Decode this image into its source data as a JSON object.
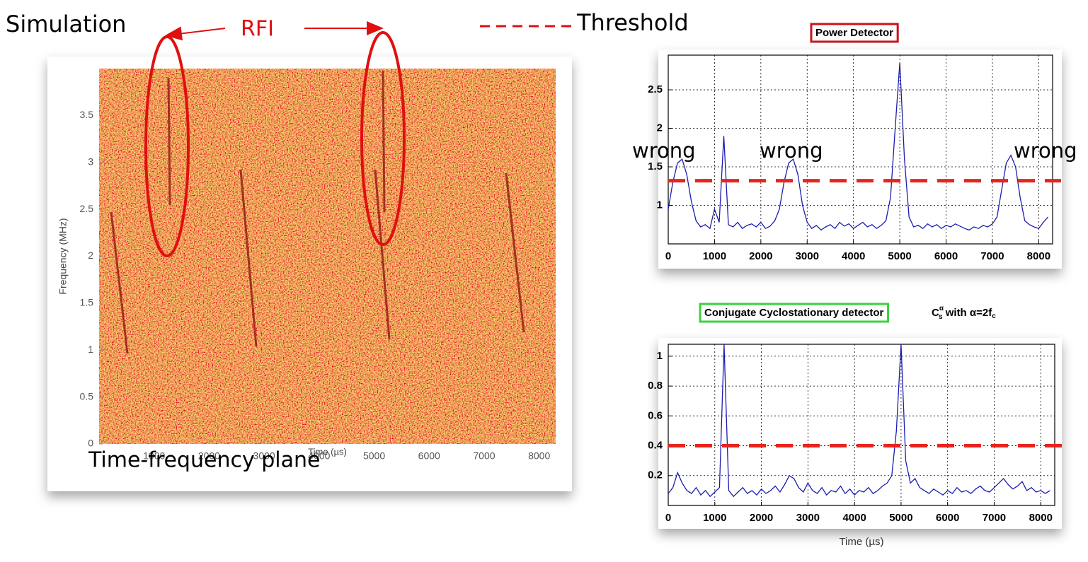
{
  "slide": {
    "heading": "Simulation",
    "rfi_label": "RFI",
    "threshold_label": "Threshold",
    "plane_label": "Time-frequency plane",
    "wrong_labels": [
      "wrong",
      "wrong",
      "wrong"
    ]
  },
  "chart_data": [
    {
      "type": "heatmap",
      "xlabel": "Time (µs)",
      "ylabel": "Frequency (MHz)",
      "xlim": [
        0,
        8300
      ],
      "ylim": [
        0,
        4
      ],
      "xticks": [
        1000,
        2000,
        3000,
        4000,
        5000,
        6000,
        7000,
        8000
      ],
      "yticks": [
        0,
        0.5,
        1,
        1.5,
        2,
        2.5,
        3,
        3.5
      ]
    },
    {
      "type": "line",
      "title": "Power Detector",
      "x": [
        0,
        100,
        200,
        300,
        400,
        500,
        600,
        700,
        800,
        900,
        1000,
        1100,
        1200,
        1300,
        1400,
        1500,
        1600,
        1700,
        1800,
        1900,
        2000,
        2100,
        2200,
        2300,
        2400,
        2500,
        2600,
        2700,
        2800,
        2900,
        3000,
        3100,
        3200,
        3300,
        3400,
        3500,
        3600,
        3700,
        3800,
        3900,
        4000,
        4100,
        4200,
        4300,
        4400,
        4500,
        4600,
        4700,
        4800,
        4900,
        5000,
        5100,
        5200,
        5300,
        5400,
        5500,
        5600,
        5700,
        5800,
        5900,
        6000,
        6100,
        6200,
        6300,
        6400,
        6500,
        6600,
        6700,
        6800,
        6900,
        7000,
        7100,
        7200,
        7300,
        7400,
        7500,
        7600,
        7700,
        7800,
        7900,
        8000,
        8100,
        8200
      ],
      "series": [
        {
          "color": "#1c1cb0",
          "values": [
            0.95,
            1.3,
            1.55,
            1.6,
            1.4,
            1.05,
            0.8,
            0.72,
            0.75,
            0.7,
            0.95,
            0.78,
            1.9,
            0.75,
            0.72,
            0.78,
            0.7,
            0.74,
            0.76,
            0.72,
            0.78,
            0.7,
            0.73,
            0.8,
            0.95,
            1.3,
            1.55,
            1.6,
            1.4,
            1.0,
            0.78,
            0.7,
            0.74,
            0.68,
            0.72,
            0.75,
            0.7,
            0.78,
            0.73,
            0.76,
            0.7,
            0.74,
            0.78,
            0.72,
            0.75,
            0.7,
            0.74,
            0.8,
            1.1,
            2.0,
            2.85,
            1.6,
            0.85,
            0.72,
            0.74,
            0.7,
            0.76,
            0.72,
            0.75,
            0.7,
            0.74,
            0.72,
            0.76,
            0.73,
            0.7,
            0.68,
            0.72,
            0.7,
            0.74,
            0.72,
            0.76,
            0.85,
            1.2,
            1.55,
            1.65,
            1.5,
            1.1,
            0.8,
            0.75,
            0.72,
            0.7,
            0.78,
            0.85
          ]
        }
      ],
      "threshold": 1.32,
      "threshold_color": "#e8241c",
      "xlim": [
        0,
        8300
      ],
      "ylim": [
        0.5,
        2.95
      ],
      "xticks": [
        0,
        1000,
        2000,
        3000,
        4000,
        5000,
        6000,
        7000,
        8000
      ],
      "yticks": [
        1,
        1.5,
        2,
        2.5
      ],
      "grid": true
    },
    {
      "type": "line",
      "title": "Conjugate Cyclostationary detector",
      "title_formula": {
        "base": "C",
        "sup": "α",
        "sub": "s",
        "rest": " with α=2f",
        "rest_sub": "c"
      },
      "xlabel": "Time (µs)",
      "x": [
        0,
        100,
        200,
        300,
        400,
        500,
        600,
        700,
        800,
        900,
        1000,
        1100,
        1200,
        1300,
        1400,
        1500,
        1600,
        1700,
        1800,
        1900,
        2000,
        2100,
        2200,
        2300,
        2400,
        2500,
        2600,
        2700,
        2800,
        2900,
        3000,
        3100,
        3200,
        3300,
        3400,
        3500,
        3600,
        3700,
        3800,
        3900,
        4000,
        4100,
        4200,
        4300,
        4400,
        4500,
        4600,
        4700,
        4800,
        4900,
        5000,
        5100,
        5200,
        5300,
        5400,
        5500,
        5600,
        5700,
        5800,
        5900,
        6000,
        6100,
        6200,
        6300,
        6400,
        6500,
        6600,
        6700,
        6800,
        6900,
        7000,
        7100,
        7200,
        7300,
        7400,
        7500,
        7600,
        7700,
        7800,
        7900,
        8000,
        8100,
        8200
      ],
      "series": [
        {
          "color": "#1c1cb0",
          "values": [
            0.08,
            0.12,
            0.22,
            0.15,
            0.1,
            0.08,
            0.12,
            0.07,
            0.1,
            0.06,
            0.09,
            0.12,
            1.08,
            0.1,
            0.06,
            0.09,
            0.12,
            0.08,
            0.1,
            0.07,
            0.11,
            0.08,
            0.1,
            0.13,
            0.09,
            0.14,
            0.2,
            0.18,
            0.12,
            0.09,
            0.15,
            0.1,
            0.08,
            0.12,
            0.07,
            0.1,
            0.09,
            0.13,
            0.08,
            0.11,
            0.07,
            0.1,
            0.09,
            0.12,
            0.08,
            0.1,
            0.13,
            0.15,
            0.2,
            0.5,
            1.08,
            0.3,
            0.15,
            0.18,
            0.12,
            0.1,
            0.08,
            0.11,
            0.09,
            0.07,
            0.1,
            0.08,
            0.12,
            0.09,
            0.1,
            0.08,
            0.11,
            0.13,
            0.1,
            0.09,
            0.12,
            0.15,
            0.18,
            0.14,
            0.11,
            0.13,
            0.16,
            0.1,
            0.12,
            0.09,
            0.1,
            0.08,
            0.1
          ]
        }
      ],
      "threshold": 0.4,
      "threshold_color": "#e8241c",
      "xlim": [
        0,
        8300
      ],
      "ylim": [
        0,
        1.08
      ],
      "xticks": [
        0,
        1000,
        2000,
        3000,
        4000,
        5000,
        6000,
        7000,
        8000
      ],
      "yticks": [
        0.2,
        0.4,
        0.6,
        0.8,
        1
      ],
      "grid": true
    }
  ]
}
